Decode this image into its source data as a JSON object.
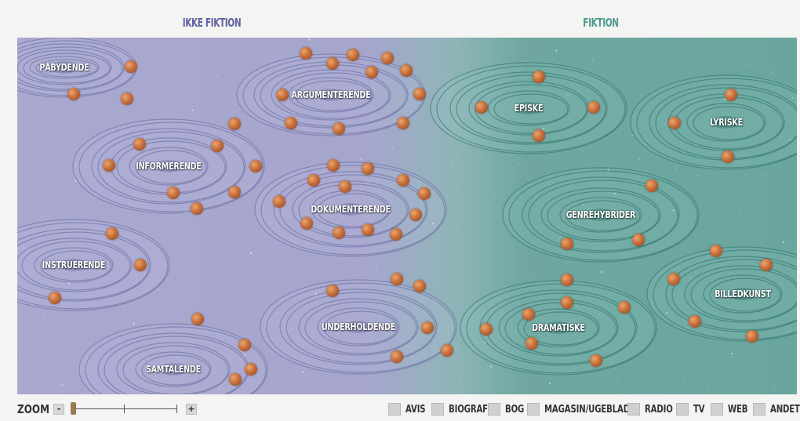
{
  "header": {
    "nonfiction": "IKKE FIKTION",
    "fiction": "FIKTION"
  },
  "galaxies": [
    {
      "id": "paabydende",
      "label": "PÅBYDENDE",
      "side": "nonfiction"
    },
    {
      "id": "argumenterende",
      "label": "ARGUMENTERENDE",
      "side": "nonfiction"
    },
    {
      "id": "informerende",
      "label": "INFORMERENDE",
      "side": "nonfiction"
    },
    {
      "id": "dokumenterende",
      "label": "DOKUMENTERENDE",
      "side": "nonfiction"
    },
    {
      "id": "instruerende",
      "label": "INSTRUERENDE",
      "side": "nonfiction"
    },
    {
      "id": "underholdende",
      "label": "UNDERHOLDENDE",
      "side": "nonfiction"
    },
    {
      "id": "samtalende",
      "label": "SAMTALENDE",
      "side": "nonfiction"
    },
    {
      "id": "episke",
      "label": "EPISKE",
      "side": "fiction"
    },
    {
      "id": "lyriske",
      "label": "LYRISKE",
      "side": "fiction"
    },
    {
      "id": "genrehybrider",
      "label": "GENREHYBRIDER",
      "side": "fiction"
    },
    {
      "id": "billedkunst",
      "label": "BILLEDKUNST",
      "side": "fiction"
    },
    {
      "id": "dramatiske",
      "label": "DRAMATISKE",
      "side": "fiction"
    }
  ],
  "footer": {
    "zoom_label": "ZOOM",
    "zoom_minus": "-",
    "zoom_plus": "+",
    "filters": [
      "AVIS",
      "BIOGRAF",
      "BOG",
      "MAGASIN/UGEBLAD",
      "RADIO",
      "TV",
      "WEB",
      "ANDET"
    ]
  },
  "colors": {
    "nonfiction_header": "#5e63a0",
    "fiction_header": "#4c9a90",
    "nonfiction_bg": "#a9a8cf",
    "fiction_bg": "#6aa69f",
    "planet": "#c8703b"
  }
}
